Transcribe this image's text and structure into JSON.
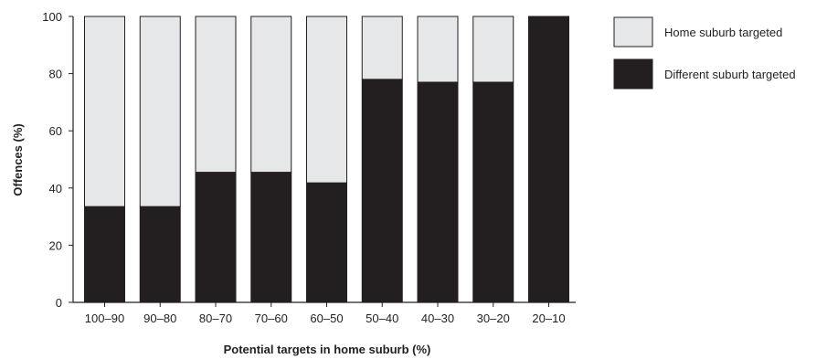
{
  "chart_data": {
    "type": "bar",
    "stacked": true,
    "categories": [
      "100–90",
      "90–80",
      "80–70",
      "70–60",
      "60–50",
      "50–40",
      "40–30",
      "30–20",
      "20–10"
    ],
    "series": [
      {
        "name": "Different suburb targeted",
        "color": "#231f20",
        "values": [
          33.5,
          33.5,
          45.5,
          45.5,
          41.8,
          78,
          77,
          77,
          100
        ]
      },
      {
        "name": "Home suburb targeted",
        "color": "#e6e7e8",
        "values": [
          66.5,
          66.5,
          54.5,
          54.5,
          58.2,
          22,
          23,
          23,
          0
        ]
      }
    ],
    "xlabel": "Potential targets in home suburb (%)",
    "ylabel": "Offences (%)",
    "ylim": [
      0,
      100
    ],
    "yticks": [
      "0",
      "20",
      "40",
      "60",
      "80",
      "100"
    ],
    "grid": false,
    "legend_position": "right",
    "legend": [
      "Home suburb targeted",
      "Different suburb targeted"
    ]
  }
}
